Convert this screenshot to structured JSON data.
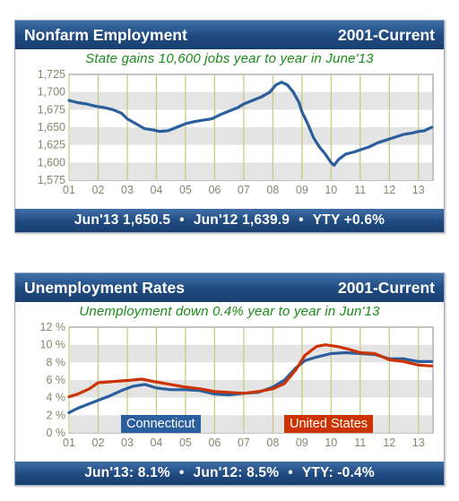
{
  "panels": [
    {
      "title": "Nonfarm Employment",
      "period": "2001-Current",
      "subtitle": "State gains 10,600 jobs year to year in June'13",
      "footer": [
        "Jun'13  1,650.5",
        "Jun'12  1,639.9",
        "YTY +0.6%"
      ],
      "chart_data": {
        "type": "line",
        "title": "",
        "xlabel": "",
        "ylabel": "",
        "x_ticks": [
          "01",
          "02",
          "03",
          "04",
          "05",
          "06",
          "07",
          "08",
          "09",
          "10",
          "11",
          "12",
          "13"
        ],
        "y_ticks": [
          "1,725",
          "1,700",
          "1,675",
          "1,650",
          "1,625",
          "1,600",
          "1,575"
        ],
        "ylim": [
          1570,
          1730
        ],
        "xlim": [
          2001.0,
          2013.5
        ],
        "grid": true,
        "series": [
          {
            "color": "#2b5e9c",
            "points": [
              [
                2001.0,
                1688
              ],
              [
                2001.3,
                1685
              ],
              [
                2001.6,
                1683
              ],
              [
                2001.9,
                1680
              ],
              [
                2002.2,
                1678
              ],
              [
                2002.5,
                1675
              ],
              [
                2002.8,
                1670
              ],
              [
                2003.0,
                1662
              ],
              [
                2003.3,
                1655
              ],
              [
                2003.6,
                1648
              ],
              [
                2003.9,
                1646
              ],
              [
                2004.1,
                1644
              ],
              [
                2004.4,
                1645
              ],
              [
                2004.7,
                1650
              ],
              [
                2005.0,
                1655
              ],
              [
                2005.3,
                1658
              ],
              [
                2005.6,
                1660
              ],
              [
                2005.9,
                1662
              ],
              [
                2006.2,
                1668
              ],
              [
                2006.5,
                1673
              ],
              [
                2006.8,
                1678
              ],
              [
                2007.0,
                1683
              ],
              [
                2007.3,
                1688
              ],
              [
                2007.6,
                1693
              ],
              [
                2007.9,
                1700
              ],
              [
                2008.1,
                1710
              ],
              [
                2008.3,
                1714
              ],
              [
                2008.5,
                1710
              ],
              [
                2008.7,
                1700
              ],
              [
                2008.9,
                1685
              ],
              [
                2009.0,
                1672
              ],
              [
                2009.2,
                1655
              ],
              [
                2009.4,
                1635
              ],
              [
                2009.6,
                1622
              ],
              [
                2009.8,
                1612
              ],
              [
                2010.0,
                1600
              ],
              [
                2010.1,
                1596
              ],
              [
                2010.25,
                1604
              ],
              [
                2010.5,
                1612
              ],
              [
                2010.8,
                1615
              ],
              [
                2011.0,
                1618
              ],
              [
                2011.3,
                1622
              ],
              [
                2011.6,
                1628
              ],
              [
                2011.9,
                1632
              ],
              [
                2012.2,
                1636
              ],
              [
                2012.5,
                1640
              ],
              [
                2012.8,
                1642
              ],
              [
                2013.0,
                1644
              ],
              [
                2013.2,
                1645
              ],
              [
                2013.45,
                1650
              ]
            ]
          }
        ]
      }
    },
    {
      "title": "Unemployment Rates",
      "period": "2001-Current",
      "subtitle": "Unemployment down 0.4% year to year in Jun'13",
      "footer": [
        "Jun'13: 8.1%",
        "Jun'12: 8.5%",
        "YTY: -0.4%"
      ],
      "chart_data": {
        "type": "line",
        "title": "",
        "xlabel": "",
        "ylabel": "",
        "x_ticks": [
          "01",
          "02",
          "03",
          "04",
          "05",
          "06",
          "07",
          "08",
          "09",
          "10",
          "11",
          "12",
          "13"
        ],
        "y_ticks": [
          "12 %",
          "10 %",
          "8 %",
          "6 %",
          "4 %",
          "2 %",
          "0 %"
        ],
        "ylim": [
          0,
          12
        ],
        "xlim": [
          2001.0,
          2013.5
        ],
        "grid": true,
        "legend": "bottom",
        "series": [
          {
            "name": "Connecticut",
            "color": "#2b5e9c",
            "points": [
              [
                2001.0,
                2.3
              ],
              [
                2001.3,
                2.8
              ],
              [
                2001.7,
                3.3
              ],
              [
                2002.0,
                3.7
              ],
              [
                2002.4,
                4.2
              ],
              [
                2002.8,
                4.8
              ],
              [
                2003.2,
                5.3
              ],
              [
                2003.6,
                5.5
              ],
              [
                2004.0,
                5.1
              ],
              [
                2004.5,
                4.9
              ],
              [
                2005.0,
                4.9
              ],
              [
                2005.5,
                4.8
              ],
              [
                2006.0,
                4.4
              ],
              [
                2006.5,
                4.3
              ],
              [
                2007.0,
                4.5
              ],
              [
                2007.5,
                4.6
              ],
              [
                2008.0,
                5.2
              ],
              [
                2008.4,
                6.0
              ],
              [
                2008.8,
                7.4
              ],
              [
                2009.1,
                8.2
              ],
              [
                2009.5,
                8.6
              ],
              [
                2010.0,
                9.0
              ],
              [
                2010.5,
                9.1
              ],
              [
                2011.0,
                9.0
              ],
              [
                2011.5,
                8.9
              ],
              [
                2012.0,
                8.4
              ],
              [
                2012.5,
                8.4
              ],
              [
                2013.0,
                8.1
              ],
              [
                2013.45,
                8.1
              ]
            ]
          },
          {
            "name": "United States",
            "color": "#cc3300",
            "points": [
              [
                2001.0,
                4.1
              ],
              [
                2001.3,
                4.4
              ],
              [
                2001.7,
                5.0
              ],
              [
                2002.0,
                5.7
              ],
              [
                2002.4,
                5.8
              ],
              [
                2002.8,
                5.9
              ],
              [
                2003.2,
                6.0
              ],
              [
                2003.5,
                6.1
              ],
              [
                2003.8,
                5.9
              ],
              [
                2004.3,
                5.6
              ],
              [
                2005.0,
                5.2
              ],
              [
                2005.5,
                5.0
              ],
              [
                2006.0,
                4.7
              ],
              [
                2006.5,
                4.6
              ],
              [
                2007.0,
                4.5
              ],
              [
                2007.5,
                4.7
              ],
              [
                2008.0,
                5.0
              ],
              [
                2008.4,
                5.6
              ],
              [
                2008.8,
                7.2
              ],
              [
                2009.1,
                8.8
              ],
              [
                2009.5,
                9.8
              ],
              [
                2009.8,
                10.0
              ],
              [
                2010.2,
                9.8
              ],
              [
                2010.6,
                9.5
              ],
              [
                2011.0,
                9.1
              ],
              [
                2011.5,
                9.0
              ],
              [
                2012.0,
                8.3
              ],
              [
                2012.5,
                8.1
              ],
              [
                2013.0,
                7.7
              ],
              [
                2013.45,
                7.6
              ]
            ]
          }
        ]
      }
    }
  ]
}
